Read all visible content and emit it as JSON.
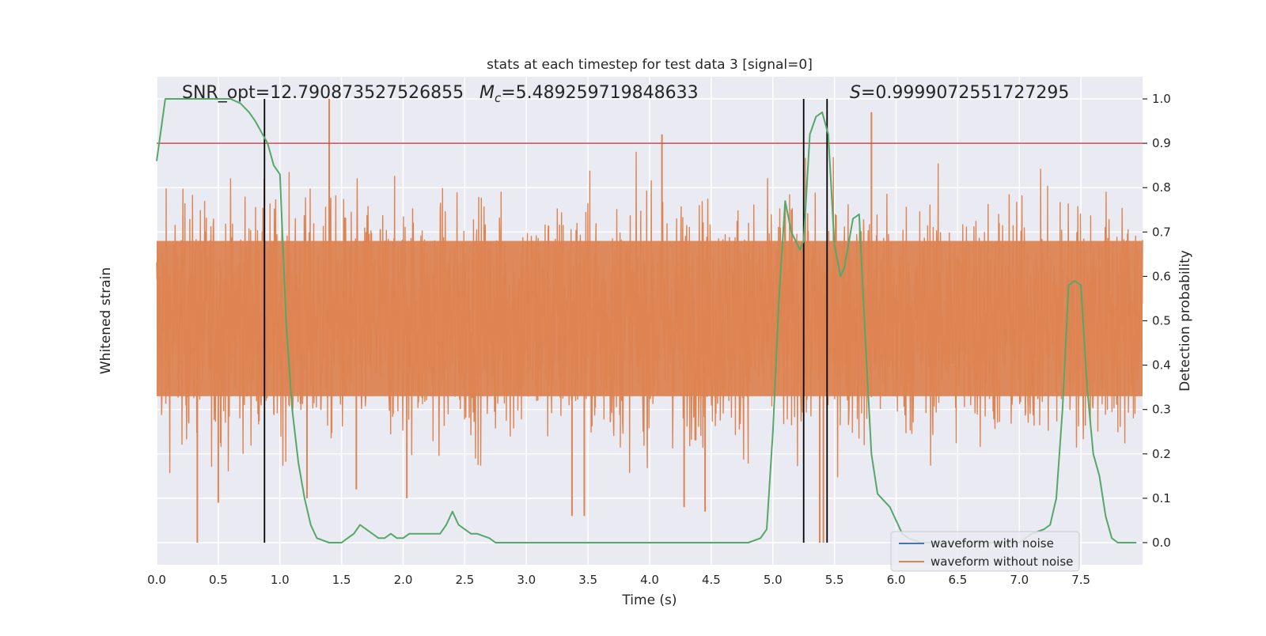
{
  "chart_data": {
    "type": "line",
    "title": "stats at each timestep for test data 3 [signal=0]",
    "xlabel": "Time (s)",
    "ylabel_left": "Whitened strain",
    "ylabel_right": "Detection probability",
    "xlim": [
      0.0,
      8.0
    ],
    "ylim_right": [
      -0.05,
      1.05
    ],
    "x_ticks": [
      "0.0",
      "0.5",
      "1.0",
      "1.5",
      "2.0",
      "2.5",
      "3.0",
      "3.5",
      "4.0",
      "4.5",
      "5.0",
      "5.5",
      "6.0",
      "6.5",
      "7.0",
      "7.5"
    ],
    "y_ticks_right": [
      "0.0",
      "0.1",
      "0.2",
      "0.3",
      "0.4",
      "0.5",
      "0.6",
      "0.7",
      "0.8",
      "0.9",
      "1.0"
    ],
    "grid": true,
    "annotations": {
      "snr": "SNR_opt=12.790873527526855",
      "mc_symbol": "M",
      "mc_sub": "c",
      "mc_value": "=5.489259719848633",
      "s_symbol": "S",
      "s_value": "=0.9999072551727295"
    },
    "threshold": 0.9,
    "vertical_lines": [
      0.875,
      5.25,
      5.44
    ],
    "legend": {
      "placement": "lower-right",
      "entries": [
        "waveform with noise",
        "waveform without noise"
      ]
    },
    "series": [
      {
        "name": "waveform with noise",
        "color": "#4c72b0",
        "values": []
      },
      {
        "name": "waveform without noise",
        "color": "#dd8452",
        "noise_center": 0.5,
        "noise_core": [
          0.33,
          0.68
        ],
        "noise_extremes": [
          0.0,
          1.0
        ],
        "spikes": [
          {
            "x": 0.33,
            "y": 0.0
          },
          {
            "x": 0.5,
            "y": 0.09
          },
          {
            "x": 1.22,
            "y": 0.1
          },
          {
            "x": 1.4,
            "y": 1.0
          },
          {
            "x": 1.62,
            "y": 0.12
          },
          {
            "x": 2.03,
            "y": 0.1
          },
          {
            "x": 3.37,
            "y": 0.06
          },
          {
            "x": 3.47,
            "y": 0.06
          },
          {
            "x": 4.1,
            "y": 0.92
          },
          {
            "x": 4.28,
            "y": 0.08
          },
          {
            "x": 4.45,
            "y": 0.07
          },
          {
            "x": 5.38,
            "y": 0.0
          },
          {
            "x": 5.41,
            "y": 0.0
          },
          {
            "x": 5.8,
            "y": 0.97
          }
        ]
      },
      {
        "name": "",
        "color": "#55a868",
        "x": [
          0.0,
          0.07,
          0.12,
          0.2,
          0.35,
          0.5,
          0.6,
          0.68,
          0.75,
          0.8,
          0.9,
          0.95,
          1.0,
          1.05,
          1.1,
          1.15,
          1.2,
          1.25,
          1.3,
          1.4,
          1.5,
          1.55,
          1.6,
          1.65,
          1.7,
          1.75,
          1.8,
          1.85,
          1.9,
          1.95,
          2.0,
          2.05,
          2.1,
          2.15,
          2.3,
          2.35,
          2.4,
          2.45,
          2.5,
          2.55,
          2.6,
          2.7,
          2.75,
          2.8,
          2.9,
          3.0,
          3.1,
          3.3,
          3.4,
          3.6,
          4.0,
          4.2,
          4.5,
          4.8,
          4.9,
          4.95,
          5.0,
          5.05,
          5.1,
          5.15,
          5.22,
          5.25,
          5.3,
          5.35,
          5.4,
          5.45,
          5.5,
          5.55,
          5.58,
          5.65,
          5.7,
          5.75,
          5.8,
          5.85,
          5.95,
          6.0,
          6.05,
          6.1,
          6.2,
          7.0,
          7.1,
          7.2,
          7.25,
          7.3,
          7.35,
          7.4,
          7.45,
          7.5,
          7.55,
          7.6,
          7.65,
          7.7,
          7.75,
          7.8,
          7.95
        ],
        "y": [
          0.86,
          1.0,
          1.0,
          1.0,
          1.0,
          1.0,
          1.0,
          0.99,
          0.97,
          0.95,
          0.9,
          0.85,
          0.83,
          0.5,
          0.3,
          0.18,
          0.1,
          0.04,
          0.01,
          0.0,
          0.0,
          0.01,
          0.02,
          0.04,
          0.03,
          0.02,
          0.01,
          0.01,
          0.02,
          0.01,
          0.01,
          0.02,
          0.02,
          0.02,
          0.02,
          0.04,
          0.07,
          0.04,
          0.03,
          0.02,
          0.02,
          0.01,
          0.0,
          0.0,
          0.0,
          0.0,
          0.0,
          0.0,
          0.0,
          0.0,
          0.0,
          0.0,
          0.0,
          0.0,
          0.01,
          0.03,
          0.25,
          0.55,
          0.77,
          0.7,
          0.66,
          0.68,
          0.92,
          0.96,
          0.97,
          0.92,
          0.67,
          0.6,
          0.62,
          0.73,
          0.74,
          0.46,
          0.2,
          0.11,
          0.08,
          0.05,
          0.02,
          0.01,
          0.0,
          0.0,
          0.02,
          0.03,
          0.04,
          0.1,
          0.3,
          0.58,
          0.59,
          0.58,
          0.35,
          0.2,
          0.15,
          0.06,
          0.01,
          0.0,
          0.0
        ]
      }
    ],
    "colors": {
      "axes_bg": "#eaeaf2",
      "grid": "#ffffff",
      "threshold": "#c44e52",
      "vlines": "#000000",
      "text": "#262626"
    }
  }
}
